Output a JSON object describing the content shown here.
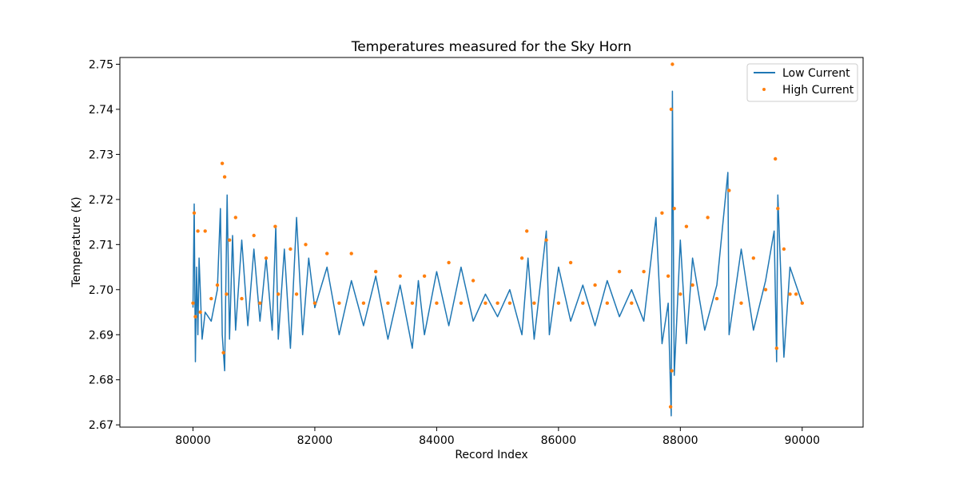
{
  "chart_data": {
    "type": "line",
    "title": "Temperatures measured for the Sky Horn",
    "xlabel": "Record Index",
    "ylabel": "Temperature (K)",
    "xlim": [
      78800,
      91000
    ],
    "ylim": [
      2.6695,
      2.7515
    ],
    "xticks": [
      80000,
      82000,
      84000,
      86000,
      88000,
      90000
    ],
    "xtick_labels": [
      "80000",
      "82000",
      "84000",
      "86000",
      "88000",
      "90000"
    ],
    "yticks": [
      2.67,
      2.68,
      2.69,
      2.7,
      2.71,
      2.72,
      2.73,
      2.74,
      2.75
    ],
    "ytick_labels": [
      "2.67",
      "2.68",
      "2.69",
      "2.70",
      "2.71",
      "2.72",
      "2.73",
      "2.74",
      "2.75"
    ],
    "grid": false,
    "legend_position": "top-right",
    "series": [
      {
        "name": "Low Current",
        "style": "line",
        "color": "#1f77b4",
        "x": [
          80000,
          80020,
          80040,
          80060,
          80080,
          80100,
          80150,
          80200,
          80300,
          80400,
          80450,
          80480,
          80520,
          80560,
          80600,
          80650,
          80700,
          80800,
          80900,
          81000,
          81100,
          81200,
          81300,
          81360,
          81400,
          81500,
          81600,
          81700,
          81800,
          81900,
          82000,
          82200,
          82400,
          82600,
          82800,
          83000,
          83200,
          83400,
          83600,
          83700,
          83800,
          84000,
          84200,
          84400,
          84600,
          84800,
          85000,
          85200,
          85400,
          85500,
          85600,
          85800,
          85850,
          86000,
          86200,
          86400,
          86600,
          86800,
          87000,
          87200,
          87400,
          87600,
          87700,
          87800,
          87850,
          87870,
          87900,
          88000,
          88100,
          88200,
          88400,
          88600,
          88780,
          88800,
          89000,
          89200,
          89400,
          89540,
          89580,
          89600,
          89700,
          89800,
          90000
        ],
        "y": [
          2.696,
          2.719,
          2.684,
          2.705,
          2.69,
          2.707,
          2.689,
          2.695,
          2.693,
          2.7,
          2.718,
          2.69,
          2.682,
          2.721,
          2.689,
          2.712,
          2.691,
          2.711,
          2.692,
          2.709,
          2.693,
          2.707,
          2.691,
          2.714,
          2.689,
          2.709,
          2.687,
          2.716,
          2.69,
          2.707,
          2.696,
          2.705,
          2.69,
          2.702,
          2.692,
          2.703,
          2.689,
          2.701,
          2.687,
          2.702,
          2.69,
          2.704,
          2.692,
          2.705,
          2.693,
          2.699,
          2.694,
          2.7,
          2.69,
          2.707,
          2.689,
          2.713,
          2.69,
          2.705,
          2.693,
          2.701,
          2.692,
          2.702,
          2.694,
          2.7,
          2.693,
          2.716,
          2.688,
          2.697,
          2.672,
          2.744,
          2.681,
          2.711,
          2.688,
          2.707,
          2.691,
          2.701,
          2.726,
          2.69,
          2.709,
          2.691,
          2.702,
          2.713,
          2.684,
          2.721,
          2.685,
          2.705,
          2.697
        ]
      },
      {
        "name": "High Current",
        "style": "scatter",
        "color": "#ff7f0e",
        "x": [
          80000,
          80020,
          80040,
          80080,
          80120,
          80200,
          80300,
          80400,
          80480,
          80500,
          80520,
          80550,
          80600,
          80700,
          80800,
          81000,
          81100,
          81200,
          81350,
          81400,
          81600,
          81700,
          81850,
          82000,
          82200,
          82400,
          82600,
          82800,
          83000,
          83200,
          83400,
          83600,
          83800,
          84000,
          84200,
          84400,
          84600,
          84800,
          85000,
          85200,
          85400,
          85480,
          85600,
          85800,
          86000,
          86200,
          86400,
          86600,
          86800,
          87000,
          87200,
          87400,
          87700,
          87800,
          87840,
          87850,
          87860,
          87870,
          87900,
          88000,
          88100,
          88200,
          88450,
          88600,
          88800,
          89000,
          89200,
          89400,
          89560,
          89580,
          89600,
          89700,
          89800,
          89900,
          90000
        ],
        "y": [
          2.697,
          2.717,
          2.694,
          2.713,
          2.695,
          2.713,
          2.698,
          2.701,
          2.728,
          2.686,
          2.725,
          2.699,
          2.711,
          2.716,
          2.698,
          2.712,
          2.697,
          2.707,
          2.714,
          2.699,
          2.709,
          2.699,
          2.71,
          2.697,
          2.708,
          2.697,
          2.708,
          2.697,
          2.704,
          2.697,
          2.703,
          2.697,
          2.703,
          2.697,
          2.706,
          2.697,
          2.702,
          2.697,
          2.697,
          2.697,
          2.707,
          2.713,
          2.697,
          2.711,
          2.697,
          2.706,
          2.697,
          2.701,
          2.697,
          2.704,
          2.697,
          2.704,
          2.717,
          2.703,
          2.674,
          2.74,
          2.682,
          2.75,
          2.718,
          2.699,
          2.714,
          2.701,
          2.716,
          2.698,
          2.722,
          2.697,
          2.707,
          2.7,
          2.729,
          2.687,
          2.718,
          2.709,
          2.699,
          2.699,
          2.697
        ]
      }
    ]
  }
}
